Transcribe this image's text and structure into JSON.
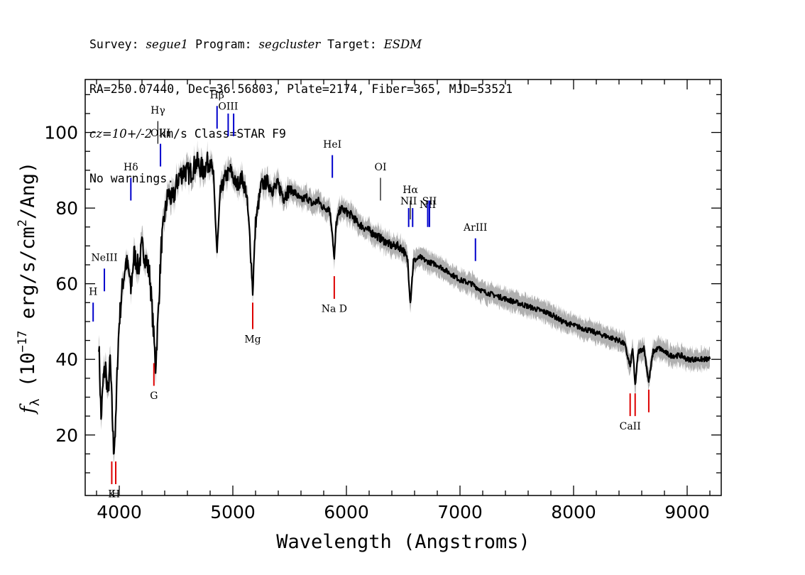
{
  "header": {
    "line1": {
      "survey_label": "Survey: ",
      "survey": "segue1",
      "program_label": " Program: ",
      "program": "segcluster",
      "target_label": " Target: ",
      "target": "ESDM"
    },
    "line2": "RA=250.07440, Dec=36.56803, Plate=2174, Fiber=365, MJD=53521",
    "line3": {
      "cz": "cz=10+/-2",
      "rest": " km/s Class=STAR F9"
    },
    "line4": "No warnings."
  },
  "chart_data": {
    "type": "line",
    "xlabel": "Wavelength (Angstroms)",
    "ylabel_parts": {
      "f": "f",
      "sub": "λ",
      "pre": " (10",
      "exp1": "−17",
      "mid": " erg/s/cm",
      "exp2": "2",
      "post": "/Ang)"
    },
    "xlim": [
      3700,
      9300
    ],
    "ylim": [
      4,
      114
    ],
    "x_ticks": [
      4000,
      5000,
      6000,
      7000,
      8000,
      9000
    ],
    "y_ticks": [
      20,
      40,
      60,
      80,
      100
    ],
    "colors": {
      "spectrum": "#000000",
      "error_band": "#b0b0b0",
      "emission": "#0000cc",
      "absorption": "#dd0000",
      "other": "#000000"
    },
    "series": [
      {
        "x": [
          3820,
          3840,
          3860,
          3880,
          3900,
          3920,
          3935,
          3950,
          3968,
          3985,
          4000,
          4030,
          4060,
          4090,
          4102,
          4130,
          4170,
          4200,
          4240,
          4270,
          4300,
          4320,
          4340,
          4370,
          4400,
          4430,
          4470,
          4520,
          4570,
          4620,
          4680,
          4740,
          4800,
          4830,
          4861,
          4890,
          4930,
          4980,
          5030,
          5080,
          5120,
          5150,
          5175,
          5200,
          5250,
          5300,
          5350,
          5400,
          5450,
          5500,
          5550,
          5600,
          5650,
          5700,
          5750,
          5800,
          5850,
          5875,
          5893,
          5910,
          5950,
          6000,
          6050,
          6100,
          6150,
          6200,
          6250,
          6300,
          6350,
          6400,
          6450,
          6500,
          6540,
          6563,
          6590,
          6650,
          6700,
          6800,
          6900,
          7000,
          7100,
          7200,
          7300,
          7400,
          7500,
          7600,
          7700,
          7800,
          7900,
          8000,
          8100,
          8200,
          8300,
          8400,
          8450,
          8498,
          8520,
          8542,
          8570,
          8620,
          8662,
          8700,
          8750,
          8800,
          8850,
          8900,
          8950,
          9000,
          9050,
          9100,
          9150,
          9200
        ],
        "y": [
          45,
          24,
          35,
          38,
          30,
          40,
          28,
          16,
          22,
          40,
          50,
          60,
          66,
          62,
          58,
          68,
          64,
          70,
          66,
          62,
          48,
          38,
          50,
          70,
          78,
          84,
          82,
          88,
          90,
          89,
          92,
          90,
          93,
          88,
          68,
          84,
          88,
          90,
          86,
          88,
          84,
          72,
          58,
          76,
          86,
          87,
          85,
          86,
          83,
          85,
          84,
          82,
          83,
          81,
          82,
          80,
          80,
          74,
          66,
          76,
          80,
          79,
          78,
          76,
          75,
          74,
          73,
          72,
          71,
          70,
          70,
          69,
          66,
          55,
          66,
          67,
          66,
          65,
          63,
          61,
          60,
          58,
          57,
          56,
          55,
          54,
          53,
          52,
          50,
          49,
          48,
          47,
          46,
          45,
          44,
          38,
          43,
          33,
          42,
          43,
          34,
          42,
          43,
          42,
          41,
          41,
          41,
          40,
          40,
          40,
          40,
          40
        ]
      }
    ],
    "line_markers": [
      {
        "label": "H",
        "x": 3770,
        "kind": "emission",
        "y_low": 50,
        "y_high": 55,
        "label_y": 57
      },
      {
        "label": "NeIII",
        "x": 3869,
        "kind": "emission",
        "y_low": 58,
        "y_high": 64,
        "label_y": 66
      },
      {
        "label": "Hδ",
        "x": 4102,
        "kind": "emission",
        "y_low": 82,
        "y_high": 88,
        "label_y": 90
      },
      {
        "label": "Hγ",
        "x": 4340,
        "kind": "other",
        "y_low": 97,
        "y_high": 103,
        "label_y": 105
      },
      {
        "label": "OIII",
        "x": 4363,
        "kind": "emission",
        "y_low": 91,
        "y_high": 97,
        "label_y": 99
      },
      {
        "label": "Hβ",
        "x": 4861,
        "kind": "emission",
        "y_low": 101,
        "y_high": 107,
        "label_y": 109
      },
      {
        "label": "OIII",
        "x": 4959,
        "kind": "emission",
        "y_low": 99,
        "y_high": 105,
        "label_y": 106
      },
      {
        "label": "",
        "x": 5007,
        "kind": "emission",
        "y_low": 99,
        "y_high": 105,
        "label_y": 0
      },
      {
        "label": "HeI",
        "x": 5876,
        "kind": "emission",
        "y_low": 88,
        "y_high": 94,
        "label_y": 96
      },
      {
        "label": "OI",
        "x": 6300,
        "kind": "other",
        "y_low": 82,
        "y_high": 88,
        "label_y": 90
      },
      {
        "label": "NII",
        "x": 6548,
        "kind": "emission",
        "y_low": 75,
        "y_high": 80,
        "label_y": 81
      },
      {
        "label": "Hα",
        "x": 6563,
        "kind": "other",
        "y_low": 77,
        "y_high": 82,
        "label_y": 84
      },
      {
        "label": "",
        "x": 6583,
        "kind": "emission",
        "y_low": 75,
        "y_high": 80,
        "label_y": 0
      },
      {
        "label": "NII",
        "x": 6716,
        "kind": "emission",
        "y_low": 75,
        "y_high": 82,
        "label_y": 80
      },
      {
        "label": "SII",
        "x": 6731,
        "kind": "emission",
        "y_low": 75,
        "y_high": 82,
        "label_y": 81
      },
      {
        "label": "ArIII",
        "x": 7136,
        "kind": "emission",
        "y_low": 66,
        "y_high": 72,
        "label_y": 74
      },
      {
        "label": "K",
        "x": 3934,
        "kind": "absorption",
        "y_low": 7,
        "y_high": 13,
        "label_y": 5
      },
      {
        "label": "H",
        "x": 3969,
        "kind": "absorption",
        "y_low": 7,
        "y_high": 13,
        "label_y": 5
      },
      {
        "label": "G",
        "x": 4305,
        "kind": "absorption",
        "y_low": 33,
        "y_high": 39,
        "label_y": 31
      },
      {
        "label": "Mg",
        "x": 5175,
        "kind": "absorption",
        "y_low": 48,
        "y_high": 55,
        "label_y": 46
      },
      {
        "label": "Na D",
        "x": 5893,
        "kind": "absorption",
        "y_low": 56,
        "y_high": 62,
        "label_y": 54
      },
      {
        "label": "CaII",
        "x": 8498,
        "kind": "absorption",
        "y_low": 25,
        "y_high": 31,
        "label_y": 23
      },
      {
        "label": "",
        "x": 8542,
        "kind": "absorption",
        "y_low": 25,
        "y_high": 31,
        "label_y": 0
      },
      {
        "label": "",
        "x": 8662,
        "kind": "absorption",
        "y_low": 26,
        "y_high": 32,
        "label_y": 0
      }
    ]
  }
}
